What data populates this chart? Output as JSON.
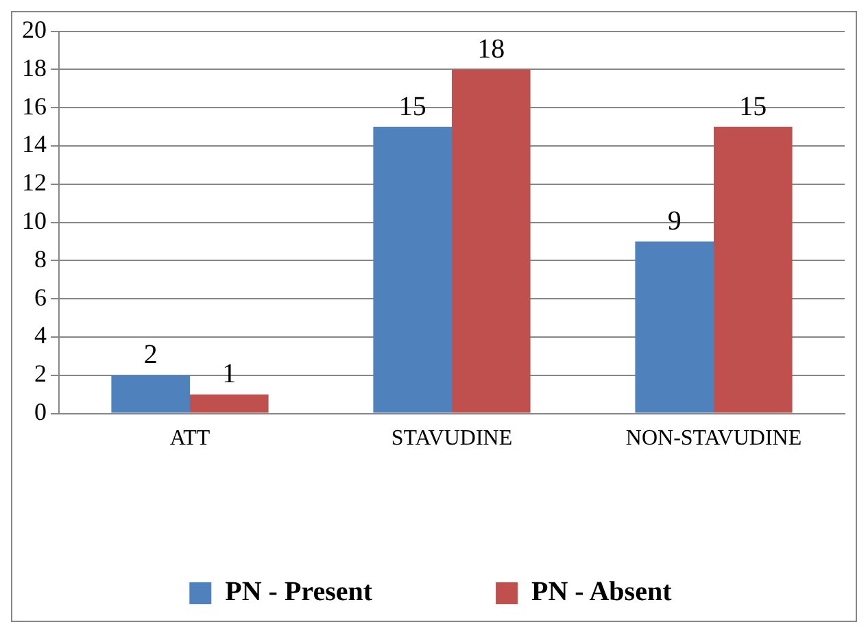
{
  "chart_data": {
    "type": "bar",
    "categories": [
      "ATT",
      "STAVUDINE",
      "NON-STAVUDINE"
    ],
    "series": [
      {
        "name": "PN - Present",
        "color": "#4f81bd",
        "values": [
          2,
          15,
          9
        ]
      },
      {
        "name": "PN - Absent",
        "color": "#c0504d",
        "values": [
          1,
          18,
          15
        ]
      }
    ],
    "ylim": [
      0,
      20
    ],
    "yticks": [
      0,
      2,
      4,
      6,
      8,
      10,
      12,
      14,
      16,
      18,
      20
    ],
    "grid": "y",
    "legend": "bottom",
    "data_labels": true
  }
}
